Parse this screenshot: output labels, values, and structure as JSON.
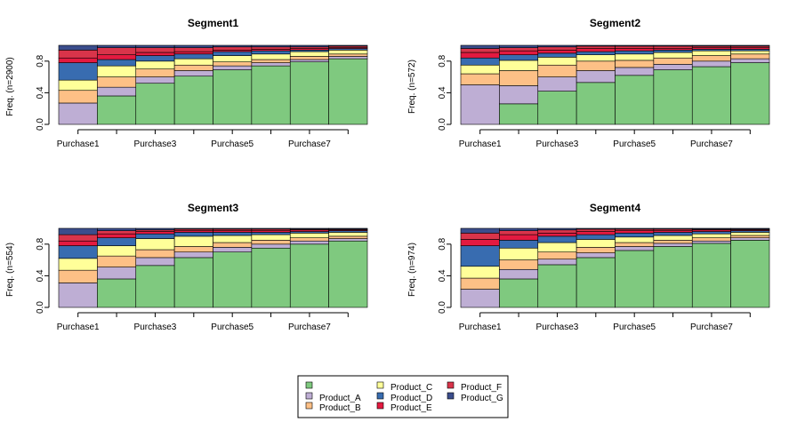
{
  "chart_data": {
    "type": "bar",
    "stacked": true,
    "proportional": true,
    "categories": [
      "Purchase1",
      "Purchase2",
      "Purchase3",
      "Purchase4",
      "Purchase5",
      "Purchase6",
      "Purchase7",
      "Purchase8"
    ],
    "x_tick_labels_shown": [
      "Purchase1",
      "Purchase3",
      "Purchase5",
      "Purchase7"
    ],
    "ylim": [
      0,
      1
    ],
    "yticks": [
      "0.0",
      "0.4",
      "0.8"
    ],
    "legend": {
      "placement": "bottom-center",
      "entries": [
        {
          "label": "",
          "color": "#7fc97f"
        },
        {
          "label": "Product_A",
          "color": "#beaed4"
        },
        {
          "label": "Product_B",
          "color": "#fdc086"
        },
        {
          "label": "Product_C",
          "color": "#ffff99"
        },
        {
          "label": "Product_D",
          "color": "#386cb0"
        },
        {
          "label": "Product_E",
          "color": "#e31a40"
        },
        {
          "label": "Product_F",
          "color": "#d9344a"
        },
        {
          "label": "Product_G",
          "color": "#3b4d8c"
        }
      ]
    },
    "segment_order": [
      "none",
      "Product_A",
      "Product_B",
      "Product_C",
      "Product_D",
      "Product_E",
      "Product_F",
      "Product_G"
    ],
    "panels": [
      {
        "title": "Segment1",
        "ylabel": "Freq. (n=2900)",
        "widths": [
          1,
          1,
          1,
          1,
          1,
          1,
          1,
          1
        ],
        "stacks": [
          [
            0.0,
            0.27,
            0.16,
            0.13,
            0.22,
            0.06,
            0.1,
            0.06
          ],
          [
            0.36,
            0.11,
            0.13,
            0.14,
            0.08,
            0.06,
            0.09,
            0.03
          ],
          [
            0.52,
            0.08,
            0.1,
            0.1,
            0.07,
            0.04,
            0.06,
            0.03
          ],
          [
            0.61,
            0.07,
            0.07,
            0.08,
            0.06,
            0.03,
            0.05,
            0.03
          ],
          [
            0.69,
            0.05,
            0.05,
            0.08,
            0.05,
            0.02,
            0.04,
            0.02
          ],
          [
            0.74,
            0.04,
            0.04,
            0.07,
            0.04,
            0.02,
            0.03,
            0.02
          ],
          [
            0.79,
            0.03,
            0.04,
            0.06,
            0.02,
            0.02,
            0.02,
            0.02
          ],
          [
            0.83,
            0.03,
            0.03,
            0.05,
            0.02,
            0.01,
            0.02,
            0.01
          ]
        ]
      },
      {
        "title": "Segment2",
        "ylabel": "Freq. (n=572)",
        "widths": [
          1,
          1,
          1,
          1,
          1,
          1,
          1,
          1
        ],
        "stacks": [
          [
            0.0,
            0.5,
            0.14,
            0.11,
            0.09,
            0.07,
            0.05,
            0.04
          ],
          [
            0.26,
            0.23,
            0.19,
            0.13,
            0.07,
            0.05,
            0.04,
            0.03
          ],
          [
            0.42,
            0.18,
            0.15,
            0.1,
            0.05,
            0.04,
            0.04,
            0.02
          ],
          [
            0.53,
            0.15,
            0.12,
            0.08,
            0.04,
            0.04,
            0.03,
            0.01
          ],
          [
            0.62,
            0.1,
            0.09,
            0.08,
            0.04,
            0.03,
            0.03,
            0.01
          ],
          [
            0.69,
            0.07,
            0.08,
            0.07,
            0.03,
            0.02,
            0.03,
            0.01
          ],
          [
            0.73,
            0.07,
            0.07,
            0.06,
            0.02,
            0.02,
            0.02,
            0.01
          ],
          [
            0.78,
            0.05,
            0.06,
            0.04,
            0.02,
            0.02,
            0.02,
            0.01
          ]
        ]
      },
      {
        "title": "Segment3",
        "ylabel": "Freq. (n=554)",
        "widths": [
          1,
          1,
          1,
          1,
          1,
          1,
          1,
          1
        ],
        "stacks": [
          [
            0.0,
            0.31,
            0.16,
            0.15,
            0.16,
            0.06,
            0.08,
            0.08
          ],
          [
            0.36,
            0.15,
            0.14,
            0.13,
            0.1,
            0.05,
            0.04,
            0.03
          ],
          [
            0.53,
            0.1,
            0.1,
            0.14,
            0.06,
            0.03,
            0.02,
            0.02
          ],
          [
            0.63,
            0.07,
            0.07,
            0.13,
            0.05,
            0.02,
            0.02,
            0.01
          ],
          [
            0.7,
            0.06,
            0.06,
            0.09,
            0.04,
            0.02,
            0.02,
            0.01
          ],
          [
            0.75,
            0.05,
            0.05,
            0.07,
            0.03,
            0.02,
            0.02,
            0.01
          ],
          [
            0.8,
            0.04,
            0.04,
            0.06,
            0.02,
            0.02,
            0.01,
            0.01
          ],
          [
            0.84,
            0.03,
            0.03,
            0.05,
            0.02,
            0.01,
            0.01,
            0.01
          ]
        ]
      },
      {
        "title": "Segment4",
        "ylabel": "Freq. (n=974)",
        "widths": [
          1,
          1,
          1,
          1,
          1,
          1,
          1,
          1
        ],
        "stacks": [
          [
            0.0,
            0.23,
            0.14,
            0.15,
            0.26,
            0.08,
            0.08,
            0.06
          ],
          [
            0.36,
            0.12,
            0.12,
            0.15,
            0.1,
            0.07,
            0.05,
            0.03
          ],
          [
            0.54,
            0.07,
            0.09,
            0.12,
            0.08,
            0.04,
            0.04,
            0.02
          ],
          [
            0.63,
            0.06,
            0.07,
            0.1,
            0.06,
            0.04,
            0.03,
            0.01
          ],
          [
            0.72,
            0.05,
            0.05,
            0.07,
            0.05,
            0.03,
            0.02,
            0.01
          ],
          [
            0.77,
            0.04,
            0.04,
            0.06,
            0.04,
            0.02,
            0.02,
            0.01
          ],
          [
            0.81,
            0.03,
            0.04,
            0.05,
            0.03,
            0.02,
            0.01,
            0.01
          ],
          [
            0.85,
            0.03,
            0.03,
            0.04,
            0.02,
            0.01,
            0.01,
            0.01
          ]
        ]
      }
    ]
  }
}
